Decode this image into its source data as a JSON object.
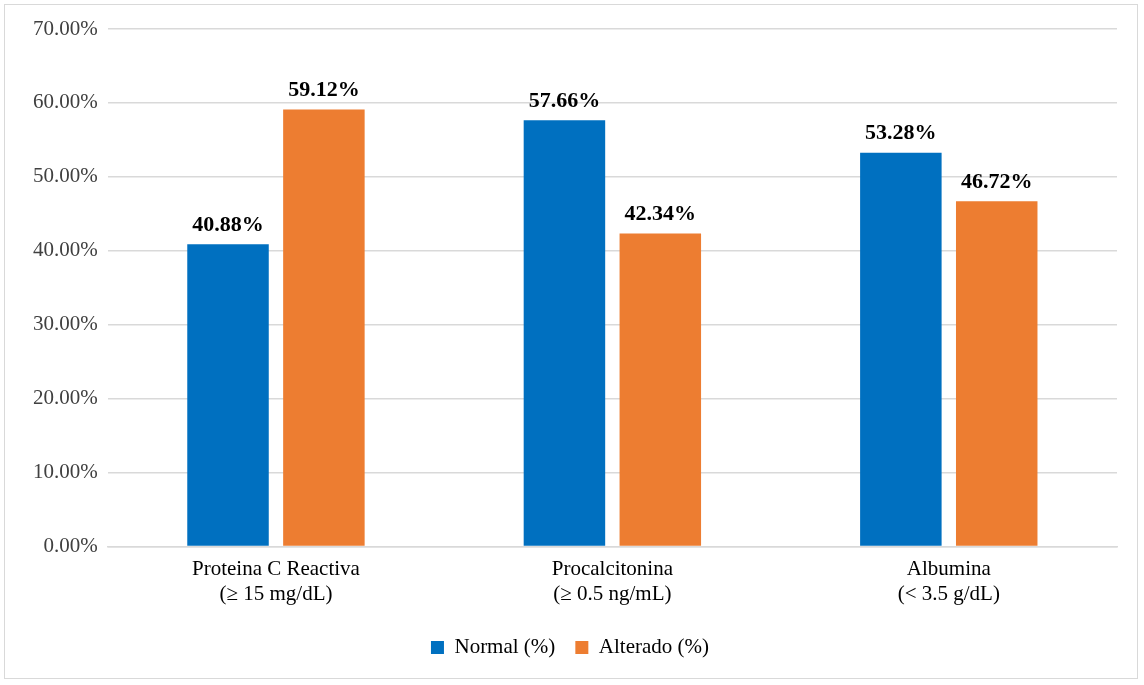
{
  "chart_data": {
    "type": "bar",
    "categories": [
      "Proteina C Reactiva\n(≥ 15 mg/dL)",
      "Procalcitonina\n(≥ 0.5 ng/mL)",
      "Albumina\n(< 3.5 g/dL)"
    ],
    "series": [
      {
        "name": "Normal (%)",
        "color": "#0070c0",
        "values": [
          40.88,
          57.66,
          53.28
        ],
        "value_labels": [
          "40.88%",
          "57.66%",
          "53.28%"
        ]
      },
      {
        "name": "Alterado (%)",
        "color": "#ed7d31",
        "values": [
          59.12,
          42.34,
          46.72
        ],
        "value_labels": [
          "59.12%",
          "42.34%",
          "46.72%"
        ]
      }
    ],
    "ylim": [
      0,
      70
    ],
    "yticks": [
      {
        "value": 0,
        "label": "0.00%"
      },
      {
        "value": 10,
        "label": "10.00%"
      },
      {
        "value": 20,
        "label": "20.00%"
      },
      {
        "value": 30,
        "label": "30.00%"
      },
      {
        "value": 40,
        "label": "40.00%"
      },
      {
        "value": 50,
        "label": "50.00%"
      },
      {
        "value": 60,
        "label": "60.00%"
      },
      {
        "value": 70,
        "label": "70.00%"
      }
    ],
    "grid": "y",
    "legend": "bottom"
  }
}
